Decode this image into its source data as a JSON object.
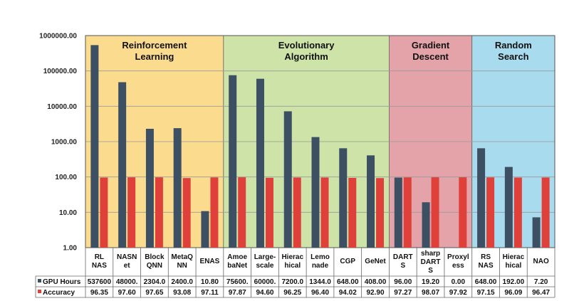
{
  "chart_data": {
    "type": "bar",
    "y_scale": "log",
    "ylim": [
      1,
      1000000
    ],
    "y_ticks": [
      "1.00",
      "10.00",
      "100.00",
      "1000.00",
      "10000.00",
      "100000.00",
      "1000000.00"
    ],
    "grid": true,
    "categories": [
      {
        "label": [
          "RL",
          "NAS"
        ]
      },
      {
        "label": [
          "NASN",
          "et"
        ]
      },
      {
        "label": [
          "Block",
          "QNN"
        ]
      },
      {
        "label": [
          "MetaQ",
          "NN"
        ]
      },
      {
        "label": [
          "ENAS"
        ]
      },
      {
        "label": [
          "Amoe",
          "baNet"
        ]
      },
      {
        "label": [
          "Large-",
          "scale"
        ]
      },
      {
        "label": [
          "Hierac",
          "hical"
        ]
      },
      {
        "label": [
          "Lemo",
          "nade"
        ]
      },
      {
        "label": [
          "CGP"
        ]
      },
      {
        "label": [
          "GeNet"
        ]
      },
      {
        "label": [
          "DART",
          "S"
        ]
      },
      {
        "label": [
          "sharp",
          "DART",
          "S"
        ]
      },
      {
        "label": [
          "Proxyl",
          "ess"
        ]
      },
      {
        "label": [
          "RS",
          "NAS"
        ]
      },
      {
        "label": [
          "Hierac",
          "hical"
        ]
      },
      {
        "label": [
          "NAO"
        ]
      }
    ],
    "groups": [
      {
        "title": [
          "Reinforcement",
          "Learning"
        ],
        "start": 0,
        "end": 4,
        "color": "#fbdc8e"
      },
      {
        "title": [
          "Evolutionary",
          "Algorithm"
        ],
        "start": 5,
        "end": 10,
        "color": "#cde3a8"
      },
      {
        "title": [
          "Gradient",
          "Descent"
        ],
        "start": 11,
        "end": 13,
        "color": "#e3a3a8"
      },
      {
        "title": [
          "Random",
          "Search"
        ],
        "start": 14,
        "end": 16,
        "color": "#a8dbee"
      }
    ],
    "series": [
      {
        "name": "GPU Hours",
        "color": "#3d4f63",
        "values": [
          537600,
          48000,
          2304,
          2400,
          10.8,
          75600,
          60000,
          7200,
          1344,
          648,
          408,
          96,
          19.2,
          0,
          648,
          192,
          7.2
        ],
        "table_text": [
          "537600",
          "48000.",
          "2304.0",
          "2400.0",
          "10.80",
          "75600.",
          "60000.",
          "7200.0",
          "1344.0",
          "648.00",
          "408.00",
          "96.00",
          "19.20",
          "0.00",
          "648.00",
          "192.00",
          "7.20"
        ]
      },
      {
        "name": "Accuracy",
        "color": "#e0403a",
        "values": [
          96.35,
          97.6,
          97.65,
          93.08,
          97.11,
          97.87,
          94.6,
          96.25,
          96.4,
          94.02,
          92.9,
          97.27,
          98.07,
          97.92,
          97.15,
          96.09,
          96.47
        ],
        "table_text": [
          "96.35",
          "97.60",
          "97.65",
          "93.08",
          "97.11",
          "97.87",
          "94.60",
          "96.25",
          "96.40",
          "94.02",
          "92.90",
          "97.27",
          "98.07",
          "97.92",
          "97.15",
          "96.09",
          "96.47"
        ]
      }
    ]
  }
}
